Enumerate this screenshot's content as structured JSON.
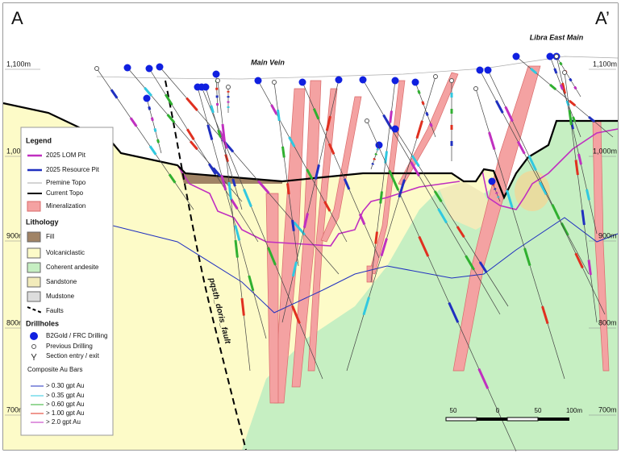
{
  "header": {
    "section_start": "A",
    "section_end": "A’"
  },
  "labels": {
    "libra_east_main": "Libra East Main",
    "main_vein": "Main Vein",
    "fault": "pqsth_doris_fault"
  },
  "elevations": [
    "1,100m",
    "1,000m",
    "900m",
    "800m",
    "700m"
  ],
  "legend": {
    "title": "Legend",
    "items": [
      "2025 LOM Pit",
      "2025 Resource Pit",
      "Premine Topo",
      "Current Topo",
      "Mineralization"
    ],
    "lithology_title": "Lithology",
    "lithology": [
      "Fill",
      "Volcaniclastic",
      "Coherent andesite",
      "Sandstone",
      "Mudstone",
      "Faults"
    ],
    "drillholes_title": "Drillholes",
    "drillholes": [
      "B2Gold / FRC Drilling",
      "Previous Drilling",
      "Section entry / exit"
    ],
    "composite_title": "Composite Au Bars",
    "composite": [
      "> 0.30 gpt Au",
      "> 0.35 gpt Au",
      "> 0.60 gpt Au",
      "> 1.00 gpt Au",
      "> 2.0 gpt Au"
    ]
  },
  "scale_bar": [
    "50",
    "0",
    "50",
    "100m"
  ]
}
